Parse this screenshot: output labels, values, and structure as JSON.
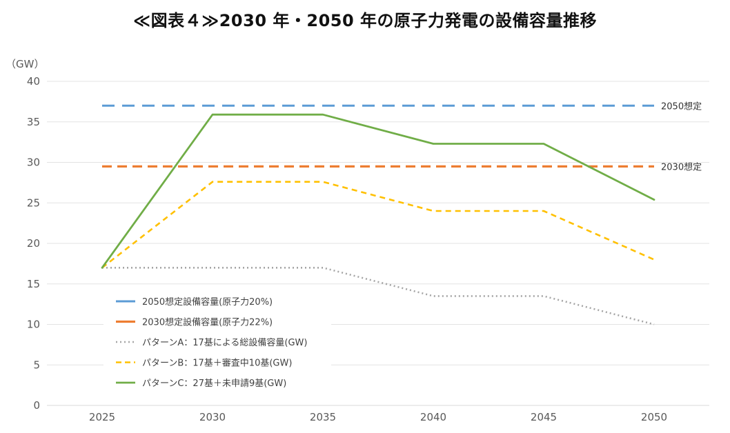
{
  "chart_data": {
    "type": "line",
    "title": "≪図表４≫2030 年・2050 年の原子力発電の設備容量推移",
    "ylabel": "（GW）",
    "xlabel": "",
    "x": [
      "2025",
      "2030",
      "2035",
      "2040",
      "2045",
      "2050"
    ],
    "yticks": [
      "0",
      "5",
      "10",
      "15",
      "20",
      "25",
      "30",
      "35",
      "40"
    ],
    "ylim": [
      0,
      40
    ],
    "grid": true,
    "legend_position": "bottom-left",
    "series": [
      {
        "name": "2050想定設備容量(原子力20%)",
        "values": [
          37,
          37,
          37,
          37,
          37,
          37
        ],
        "color": "#5b9bd5",
        "style": "longdash",
        "end_label": "2050想定"
      },
      {
        "name": "2030想定設備容量(原子力22%)",
        "values": [
          29.5,
          29.5,
          29.5,
          29.5,
          29.5,
          29.5
        ],
        "color": "#ed7d31",
        "style": "dash",
        "end_label": "2030想定"
      },
      {
        "name": "パターンA：17基による総設備容量(GW)",
        "values": [
          17,
          17,
          17,
          13.5,
          13.5,
          10
        ],
        "color": "#a5a5a5",
        "style": "dot",
        "end_label": ""
      },
      {
        "name": "パターンB：17基＋審査中10基(GW)",
        "values": [
          17,
          27.6,
          27.6,
          24,
          24,
          18
        ],
        "color": "#ffc000",
        "style": "shortdash",
        "end_label": ""
      },
      {
        "name": "パターンC：27基＋未申請9基(GW)",
        "values": [
          17,
          35.9,
          35.9,
          32.3,
          32.3,
          25.4
        ],
        "color": "#70ad47",
        "style": "solid",
        "end_label": ""
      }
    ]
  }
}
